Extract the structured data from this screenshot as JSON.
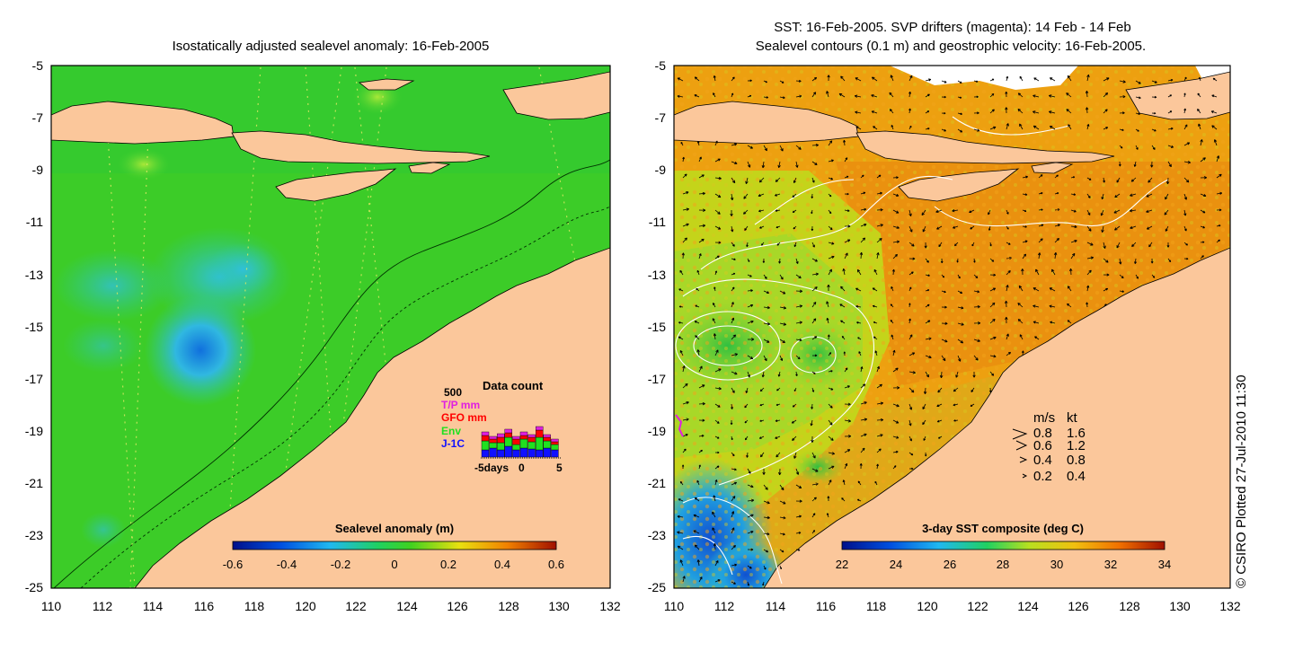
{
  "left_panel": {
    "title": "Isostatically adjusted sealevel anomaly: 16-Feb-2005",
    "y_ticks": [
      "-5",
      "-7",
      "-9",
      "-11",
      "-13",
      "-15",
      "-17",
      "-19",
      "-21",
      "-23",
      "-25"
    ],
    "x_ticks": [
      "110",
      "112",
      "114",
      "116",
      "118",
      "120",
      "122",
      "124",
      "126",
      "128",
      "130",
      "132"
    ],
    "colorbar": {
      "title": "Sealevel anomaly (m)",
      "ticks": [
        "-0.6",
        "-0.4",
        "-0.2",
        "0",
        "0.2",
        "0.4",
        "0.6"
      ],
      "range": [
        -0.6,
        0.6
      ]
    },
    "inset": {
      "title": "Data count",
      "ymax_label": "500",
      "legend": [
        {
          "label": "T/P mm",
          "color": "#e020e0"
        },
        {
          "label": "GFO mm",
          "color": "#ff0000"
        },
        {
          "label": "Env",
          "color": "#20e020"
        },
        {
          "label": "J-1C",
          "color": "#1010ff"
        }
      ],
      "xlabel_left": "-5days",
      "xlabel_mid": "0",
      "xlabel_right": "5",
      "bars": [
        {
          "jc": 8,
          "env": 10,
          "gfo": 6,
          "tp": 4
        },
        {
          "jc": 10,
          "env": 6,
          "gfo": 4,
          "tp": 3
        },
        {
          "jc": 8,
          "env": 8,
          "gfo": 6,
          "tp": 4
        },
        {
          "jc": 12,
          "env": 10,
          "gfo": 5,
          "tp": 4
        },
        {
          "jc": 8,
          "env": 6,
          "gfo": 6,
          "tp": 3
        },
        {
          "jc": 10,
          "env": 10,
          "gfo": 4,
          "tp": 4
        },
        {
          "jc": 9,
          "env": 8,
          "gfo": 5,
          "tp": 3
        },
        {
          "jc": 8,
          "env": 14,
          "gfo": 8,
          "tp": 4
        },
        {
          "jc": 10,
          "env": 8,
          "gfo": 4,
          "tp": 3
        },
        {
          "jc": 8,
          "env": 6,
          "gfo": 3,
          "tp": 3
        }
      ]
    }
  },
  "right_panel": {
    "title_line1": "SST: 16-Feb-2005. SVP drifters (magenta): 14 Feb - 14 Feb",
    "title_line2": "Sealevel contours (0.1 m) and geostrophic velocity: 16-Feb-2005.",
    "y_ticks": [
      "-5",
      "-7",
      "-9",
      "-11",
      "-13",
      "-15",
      "-17",
      "-19",
      "-21",
      "-23",
      "-25"
    ],
    "x_ticks": [
      "110",
      "112",
      "114",
      "116",
      "118",
      "120",
      "122",
      "124",
      "126",
      "128",
      "130",
      "132"
    ],
    "colorbar": {
      "title": "3-day SST composite (deg C)",
      "ticks": [
        "22",
        "24",
        "26",
        "28",
        "30",
        "32",
        "34"
      ],
      "range": [
        22,
        34
      ]
    },
    "velocity_legend": {
      "header_ms": "m/s",
      "header_kt": "kt",
      "rows": [
        {
          "ms": "0.8",
          "kt": "1.6"
        },
        {
          "ms": "0.6",
          "kt": "1.2"
        },
        {
          "ms": "0.4",
          "kt": "0.8"
        },
        {
          "ms": "0.2",
          "kt": "0.4"
        }
      ]
    }
  },
  "credit": "© CSIRO Plotted 27-Jul-2010 11:30",
  "colors": {
    "land": "#fbc79b",
    "ocean_green": "#22cc22",
    "anomaly_blue": "#33bbdd",
    "sst_orange": "#e89a10",
    "sst_yellow": "#c8d820",
    "sst_blue": "#2090e0",
    "contour_white": "#ffffff"
  }
}
